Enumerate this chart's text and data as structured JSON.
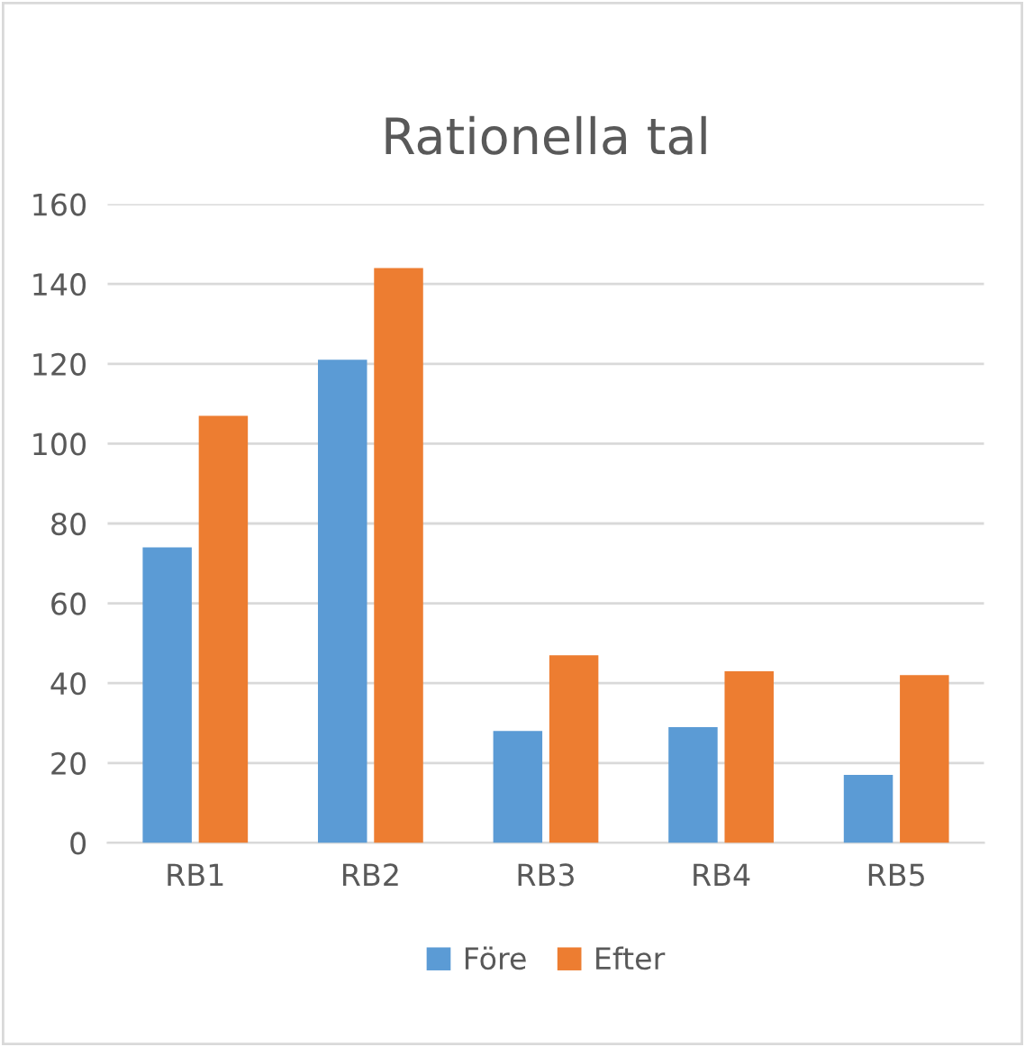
{
  "chart_data": {
    "type": "bar",
    "title": "Rationella tal",
    "categories": [
      "RB1",
      "RB2",
      "RB3",
      "RB4",
      "RB5"
    ],
    "series": [
      {
        "name": "Före",
        "color": "#5b9bd5",
        "values": [
          74,
          121,
          28,
          29,
          17
        ]
      },
      {
        "name": "Efter",
        "color": "#ed7d31",
        "values": [
          107,
          144,
          47,
          43,
          42
        ]
      }
    ],
    "ylim": [
      0,
      160
    ],
    "yticks": [
      0,
      20,
      40,
      60,
      80,
      100,
      120,
      140,
      160
    ],
    "grid": "y",
    "legend": "bottom"
  }
}
